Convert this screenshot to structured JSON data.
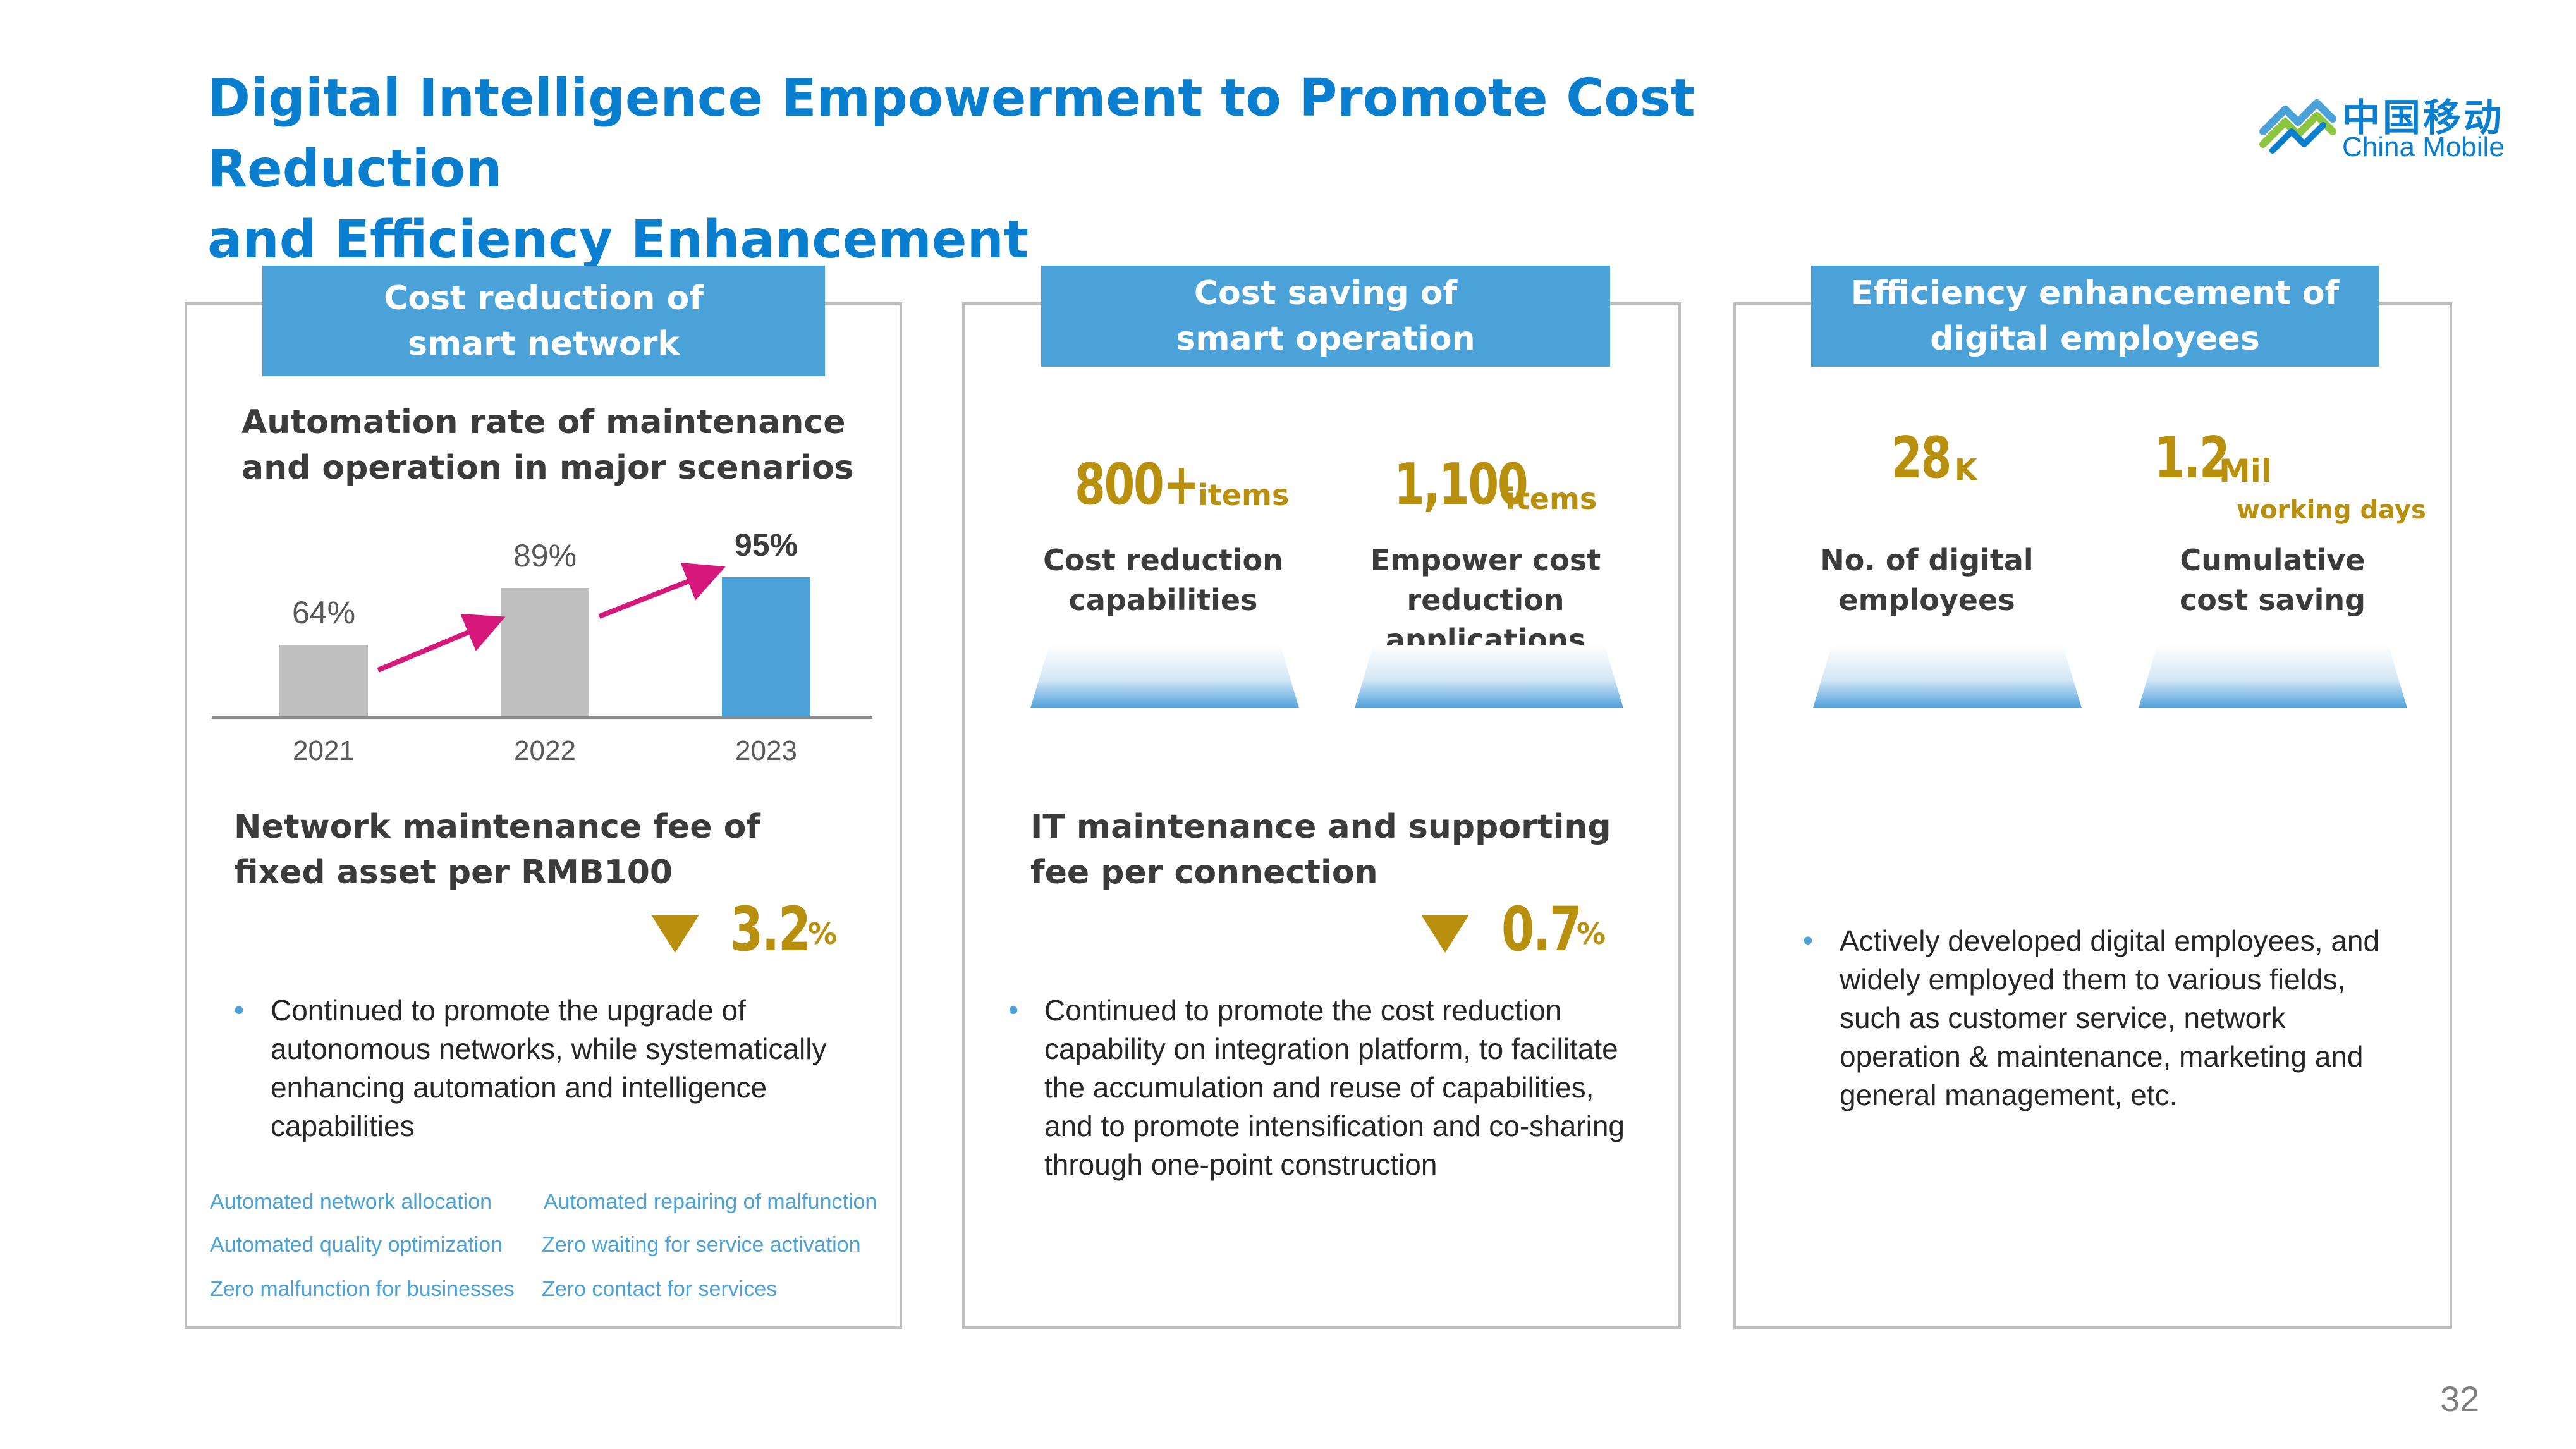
{
  "title_line1": "Digital Intelligence Empowerment to Promote Cost Reduction",
  "title_line2": "and Efficiency Enhancement",
  "logo": {
    "cn": "中国移动",
    "en": "China Mobile",
    "icon": "china-mobile-logo-icon"
  },
  "page_number": "32",
  "panel1": {
    "header_line1": "Cost reduction of",
    "header_line2": "smart network",
    "chart_title_line1": "Automation rate of maintenance",
    "chart_title_line2": "and operation in major scenarios",
    "metric_line1": "Network maintenance fee of",
    "metric_line2": "fixed asset per RMB100",
    "metric_value": "3.2",
    "metric_unit": "%",
    "bullet_line1": "Continued to promote the upgrade of",
    "bullet_line2": "autonomous networks, while systematically",
    "bullet_line3": "enhancing automation and intelligence",
    "bullet_line4": "capabilities",
    "tags": [
      "Automated network allocation",
      "Automated repairing of malfunction",
      "Automated quality optimization",
      "Zero waiting  for service activation",
      "Zero malfunction for businesses",
      "Zero contact for services"
    ]
  },
  "panel2": {
    "header_line1": "Cost saving of",
    "header_line2": "smart operation",
    "stat1_value": "800+",
    "stat1_unit": "items",
    "stat1_caption_line1": "Cost reduction",
    "stat1_caption_line2": "capabilities",
    "stat2_value": "1,100",
    "stat2_unit": "items",
    "stat2_caption_line1": "Empower cost",
    "stat2_caption_line2": "reduction",
    "stat2_caption_line3": "applications",
    "metric_line1": "IT maintenance and supporting",
    "metric_line2": "fee per connection",
    "metric_value": "0.7",
    "metric_unit": "%",
    "bullet_line1": "Continued to promote the cost reduction",
    "bullet_line2": "capability on integration platform, to facilitate",
    "bullet_line3": "the accumulation and reuse of capabilities,",
    "bullet_line4": "and to promote intensification and co-sharing",
    "bullet_line5": "through one-point construction"
  },
  "panel3": {
    "header_line1": "Efficiency enhancement of",
    "header_line2": "digital employees",
    "stat1_value": "28",
    "stat1_unit": "K",
    "stat1_caption_line1": "No. of digital",
    "stat1_caption_line2": "employees",
    "stat2_value": "1.2",
    "stat2_unit": "Mil",
    "stat2_subunit": "working days",
    "stat2_caption_line1": "Cumulative",
    "stat2_caption_line2": "cost saving",
    "bullet_line1": "Actively developed digital employees, and",
    "bullet_line2": "widely employed them to various fields,",
    "bullet_line3": "such as customer service, network",
    "bullet_line4": "operation & maintenance, marketing and",
    "bullet_line5": "general management, etc."
  },
  "colors": {
    "title": "#0a7fd0",
    "header_bg": "#4aa2d9",
    "gold": "#b8900e",
    "bar_gray": "#bfbfbf",
    "bar_blue": "#4aa2d9",
    "arrow": "#d6187a"
  },
  "chart_data": {
    "type": "bar",
    "categories": [
      "2021",
      "2022",
      "2023"
    ],
    "values": [
      64,
      89,
      95
    ],
    "labels": [
      "64%",
      "89%",
      "95%"
    ],
    "title": "Automation rate of maintenance and operation in major scenarios",
    "ylim": [
      0,
      100
    ],
    "highlight_last": true
  }
}
